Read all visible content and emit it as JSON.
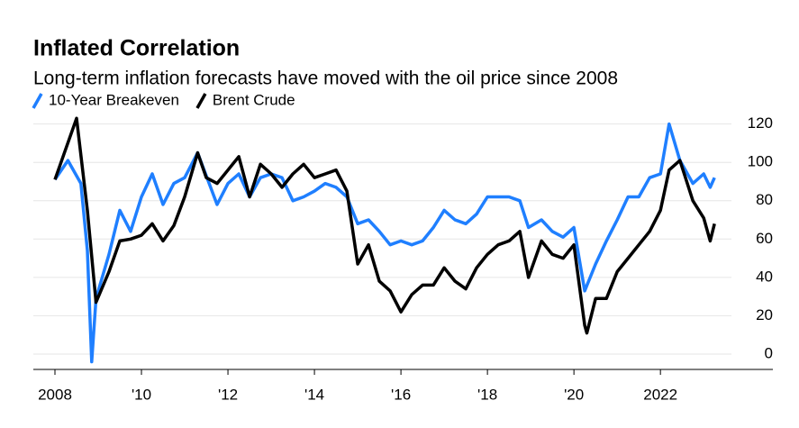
{
  "chart_data": {
    "type": "line",
    "title": "Inflated Correlation",
    "subtitle": "Long-term inflation forecasts have moved with the oil price since 2008",
    "series": [
      {
        "name": "10-Year Breakeven",
        "color": "#1f7fff",
        "x": [
          2008.0,
          2008.3,
          2008.6,
          2008.75,
          2008.85,
          2008.95,
          2009.25,
          2009.5,
          2009.75,
          2010.0,
          2010.25,
          2010.5,
          2010.75,
          2011.0,
          2011.3,
          2011.75,
          2012.0,
          2012.25,
          2012.5,
          2012.75,
          2013.0,
          2013.25,
          2013.5,
          2013.75,
          2014.0,
          2014.25,
          2014.5,
          2014.75,
          2015.0,
          2015.25,
          2015.5,
          2015.75,
          2016.0,
          2016.25,
          2016.5,
          2016.75,
          2017.0,
          2017.25,
          2017.5,
          2017.75,
          2018.0,
          2018.25,
          2018.5,
          2018.75,
          2018.95,
          2019.25,
          2019.5,
          2019.75,
          2020.0,
          2020.25,
          2020.5,
          2020.75,
          2021.0,
          2021.25,
          2021.5,
          2021.75,
          2022.0,
          2022.2,
          2022.45,
          2022.75,
          2023.0,
          2023.15,
          2023.25
        ],
        "values": [
          91,
          101,
          89,
          54,
          -4,
          29,
          52,
          75,
          64,
          82,
          94,
          78,
          89,
          92,
          105,
          78,
          89,
          94,
          82,
          92,
          94,
          92,
          80,
          82,
          85,
          89,
          87,
          82,
          68,
          70,
          64,
          57,
          59,
          57,
          59,
          66,
          75,
          70,
          68,
          73,
          82,
          82,
          82,
          80,
          66,
          70,
          64,
          61,
          66,
          33,
          47,
          59,
          70,
          82,
          82,
          92,
          94,
          120,
          101,
          89,
          94,
          87,
          92
        ]
      },
      {
        "name": "Brent Crude",
        "color": "#000000",
        "x": [
          2008.0,
          2008.5,
          2008.75,
          2008.95,
          2009.25,
          2009.5,
          2009.75,
          2010.0,
          2010.25,
          2010.5,
          2010.75,
          2011.0,
          2011.3,
          2011.5,
          2011.75,
          2012.0,
          2012.25,
          2012.5,
          2012.75,
          2013.0,
          2013.25,
          2013.5,
          2013.75,
          2014.0,
          2014.25,
          2014.5,
          2014.75,
          2015.0,
          2015.25,
          2015.5,
          2015.75,
          2016.0,
          2016.25,
          2016.5,
          2016.75,
          2017.0,
          2017.25,
          2017.5,
          2017.75,
          2018.0,
          2018.25,
          2018.5,
          2018.75,
          2018.95,
          2019.25,
          2019.5,
          2019.75,
          2020.0,
          2020.25,
          2020.3,
          2020.5,
          2020.75,
          2021.0,
          2021.25,
          2021.5,
          2021.75,
          2022.0,
          2022.2,
          2022.45,
          2022.75,
          2023.0,
          2023.15,
          2023.25
        ],
        "values": [
          91,
          123,
          75,
          27,
          43,
          59,
          60,
          62,
          68,
          59,
          67,
          82,
          105,
          92,
          89,
          96,
          103,
          82,
          99,
          94,
          87,
          94,
          99,
          92,
          94,
          96,
          85,
          47,
          57,
          38,
          33,
          22,
          31,
          36,
          36,
          45,
          38,
          34,
          45,
          52,
          57,
          59,
          64,
          40,
          59,
          52,
          50,
          57,
          15,
          11,
          29,
          29,
          43,
          50,
          57,
          64,
          75,
          96,
          101,
          80,
          71,
          59,
          68
        ]
      }
    ],
    "xlim": [
      2007.5,
      2024.6
    ],
    "xticks": [
      2008,
      {
        "value": 2010,
        "label": "'10"
      },
      {
        "value": 2012,
        "label": "'12"
      },
      {
        "value": 2014,
        "label": "'14"
      },
      {
        "value": 2016,
        "label": "'16"
      },
      {
        "value": 2018,
        "label": "'18"
      },
      {
        "value": 2020,
        "label": "'20"
      },
      2022
    ],
    "ylim": [
      -8,
      125
    ],
    "yticks": [
      0,
      20,
      40,
      60,
      80,
      100,
      120
    ],
    "grid": true
  }
}
